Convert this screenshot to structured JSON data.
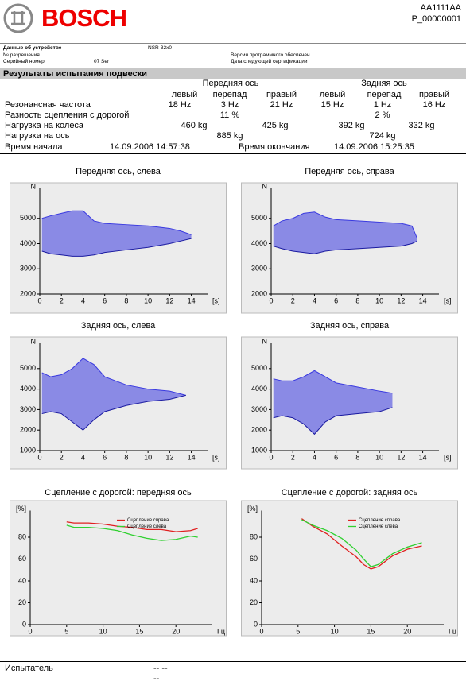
{
  "header": {
    "brand": "BOSCH",
    "code": "AA1111AA",
    "protocol": "P_00000001"
  },
  "device": {
    "label": "Данные об устройстве",
    "model": "NSR-32x0",
    "permit_label": "№ разрешения",
    "serial_label": "Серийный номер",
    "serial": "07 Ser",
    "software_label": "Версия программного обеспечен",
    "cert_label": "Дата следующей сертификации"
  },
  "results": {
    "title": "Результаты испытания подвески",
    "axes": [
      "Передняя ось",
      "Задняя ось"
    ],
    "columns": [
      "левый",
      "перепад",
      "правый",
      "левый",
      "перепад",
      "правый"
    ],
    "rows": [
      [
        "Резонансная частота",
        "18 Hz",
        "3 Hz",
        "21 Hz",
        "15 Hz",
        "1 Hz",
        "16 Hz"
      ],
      [
        "Разность сцепления с дорогой",
        "11 %",
        "2 %"
      ],
      [
        "Нагрузка на колеса",
        "460 kg",
        "425 kg",
        "392 kg",
        "332 kg"
      ],
      [
        "Нагрузка на ось",
        "885 kg",
        "724 kg"
      ]
    ],
    "start_label": "Время начала",
    "start": "14.09.2006 14:57:38",
    "end_label": "Время окончания",
    "end": "14.09.2006 15:25:35"
  },
  "chart_data": [
    {
      "type": "area",
      "title": "Передняя ось, слева",
      "ylabel": "N",
      "xlabel": "[s]",
      "x": [
        0.2,
        1,
        2,
        3,
        4,
        5,
        6,
        8,
        10,
        12,
        13,
        14
      ],
      "series": [
        {
          "color": "#3a3ae0",
          "values": [
            5000,
            5100,
            5200,
            5300,
            5300,
            4900,
            4800,
            4750,
            4700,
            4600,
            4500,
            4350
          ]
        },
        {
          "color": "#1a1aa0",
          "values": [
            3700,
            3600,
            3550,
            3500,
            3500,
            3550,
            3650,
            3750,
            3850,
            4000,
            4100,
            4200
          ]
        }
      ],
      "xlim": [
        0,
        15.5
      ],
      "ylim": [
        2000,
        6000
      ],
      "xticks": [
        0,
        2,
        4,
        6,
        8,
        10,
        12,
        14
      ],
      "yticks": [
        2000,
        3000,
        4000,
        5000
      ]
    },
    {
      "type": "area",
      "title": "Передняя ось, справа",
      "ylabel": "N",
      "xlabel": "[s]",
      "x": [
        0.2,
        1,
        2,
        3,
        4,
        5,
        6,
        8,
        10,
        12,
        13,
        13.5
      ],
      "series": [
        {
          "color": "#3a3ae0",
          "values": [
            4700,
            4900,
            5000,
            5200,
            5250,
            5050,
            4950,
            4900,
            4850,
            4800,
            4700,
            4200
          ]
        },
        {
          "color": "#1a1aa0",
          "values": [
            3900,
            3800,
            3700,
            3650,
            3600,
            3700,
            3750,
            3800,
            3850,
            3900,
            4000,
            4100
          ]
        }
      ],
      "xlim": [
        0,
        15.5
      ],
      "ylim": [
        2000,
        6000
      ],
      "xticks": [
        0,
        2,
        4,
        6,
        8,
        10,
        12,
        14
      ],
      "yticks": [
        2000,
        3000,
        4000,
        5000
      ]
    },
    {
      "type": "area",
      "title": "Задняя ось, слева",
      "ylabel": "N",
      "xlabel": "[s]",
      "x": [
        0.2,
        1,
        2,
        3,
        4,
        5,
        6,
        8,
        10,
        12,
        13.5
      ],
      "series": [
        {
          "color": "#3a3ae0",
          "values": [
            4800,
            4600,
            4700,
            5000,
            5500,
            5200,
            4600,
            4200,
            4000,
            3900,
            3700
          ]
        },
        {
          "color": "#1a1aa0",
          "values": [
            2800,
            2900,
            2800,
            2400,
            2000,
            2500,
            2900,
            3200,
            3400,
            3500,
            3700
          ]
        }
      ],
      "xlim": [
        0,
        15.5
      ],
      "ylim": [
        1000,
        6000
      ],
      "xticks": [
        0,
        2,
        4,
        6,
        8,
        10,
        12,
        14
      ],
      "yticks": [
        1000,
        2000,
        3000,
        4000,
        5000
      ]
    },
    {
      "type": "area",
      "title": "Задняя ось, справа",
      "ylabel": "N",
      "xlabel": "[s]",
      "x": [
        0.2,
        1,
        2,
        3,
        4,
        5,
        6,
        8,
        10,
        11.2
      ],
      "series": [
        {
          "color": "#3a3ae0",
          "values": [
            4500,
            4400,
            4400,
            4600,
            4900,
            4600,
            4300,
            4100,
            3900,
            3800
          ]
        },
        {
          "color": "#1a1aa0",
          "values": [
            2600,
            2700,
            2600,
            2300,
            1800,
            2400,
            2700,
            2800,
            2900,
            3100
          ]
        }
      ],
      "xlim": [
        0,
        15.5
      ],
      "ylim": [
        1000,
        6000
      ],
      "xticks": [
        0,
        2,
        4,
        6,
        8,
        10,
        12,
        14
      ],
      "yticks": [
        1000,
        2000,
        3000,
        4000,
        5000
      ]
    },
    {
      "type": "line",
      "title": "Сцепление с дорогой: передняя ось",
      "ylabel": "[%]",
      "xlabel": "Гц",
      "x": [
        5,
        6,
        8,
        10,
        12,
        14,
        16,
        18,
        20,
        22,
        23
      ],
      "series": [
        {
          "name": "Сцепление справа",
          "color": "#e02020",
          "values": [
            94,
            93,
            93,
            92,
            90,
            89,
            87,
            87,
            85,
            86,
            88
          ]
        },
        {
          "name": "Сцепление слева",
          "color": "#30d030",
          "values": [
            91,
            89,
            89,
            88,
            86,
            82,
            79,
            77,
            78,
            81,
            80
          ]
        }
      ],
      "xlim": [
        0,
        25
      ],
      "ylim": [
        0,
        100
      ],
      "xticks": [
        0,
        5,
        10,
        15,
        20
      ],
      "yticks": [
        0,
        20,
        40,
        60,
        80
      ],
      "legend": "upper right"
    },
    {
      "type": "line",
      "title": "Сцепление с дорогой: задняя ось",
      "ylabel": "[%]",
      "xlabel": "Гц",
      "x": [
        5.5,
        7,
        9,
        11,
        13,
        14,
        15,
        16,
        18,
        20,
        22
      ],
      "series": [
        {
          "name": "Сцепление справа",
          "color": "#e02020",
          "values": [
            97,
            90,
            83,
            72,
            62,
            55,
            51,
            53,
            63,
            69,
            72
          ]
        },
        {
          "name": "Сцепление слева",
          "color": "#30d030",
          "values": [
            96,
            91,
            86,
            79,
            68,
            60,
            53,
            55,
            65,
            71,
            75
          ]
        }
      ],
      "xlim": [
        0,
        25
      ],
      "ylim": [
        0,
        100
      ],
      "xticks": [
        0,
        5,
        10,
        15,
        20
      ],
      "yticks": [
        0,
        20,
        40,
        60,
        80
      ],
      "legend": "upper right"
    }
  ],
  "footer": {
    "label": "Испытатель",
    "value1": "-- --",
    "value2": "--"
  }
}
